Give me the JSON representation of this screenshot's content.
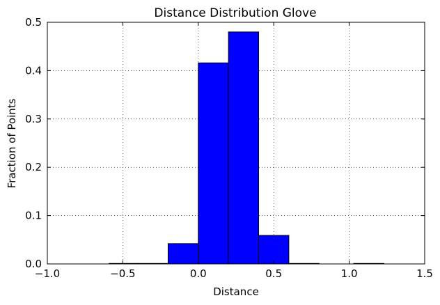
{
  "chart_data": {
    "type": "bar",
    "title": "Distance Distribution Glove",
    "xlabel": "Distance",
    "ylabel": "Fraction of Points",
    "xlim": [
      -1.0,
      1.5
    ],
    "ylim": [
      0.0,
      0.5
    ],
    "xticks": [
      "−1.0",
      "−0.5",
      "0.0",
      "0.5",
      "1.0",
      "1.5"
    ],
    "xtick_values": [
      -1.0,
      -0.5,
      0.0,
      0.5,
      1.0,
      1.5
    ],
    "yticks": [
      "0.0",
      "0.1",
      "0.2",
      "0.3",
      "0.4",
      "0.5"
    ],
    "ytick_values": [
      0.0,
      0.1,
      0.2,
      0.3,
      0.4,
      0.5
    ],
    "grid": true,
    "bar_color": "#0000ff",
    "bins": [
      {
        "x0": -0.59,
        "x1": -0.4,
        "value": 0.001
      },
      {
        "x0": -0.4,
        "x1": -0.2,
        "value": 0.001
      },
      {
        "x0": -0.2,
        "x1": 0.0,
        "value": 0.042
      },
      {
        "x0": 0.0,
        "x1": 0.2,
        "value": 0.416
      },
      {
        "x0": 0.2,
        "x1": 0.4,
        "value": 0.48
      },
      {
        "x0": 0.4,
        "x1": 0.6,
        "value": 0.059
      },
      {
        "x0": 0.6,
        "x1": 0.8,
        "value": 0.001
      },
      {
        "x0": 1.03,
        "x1": 1.23,
        "value": 0.001
      }
    ]
  }
}
